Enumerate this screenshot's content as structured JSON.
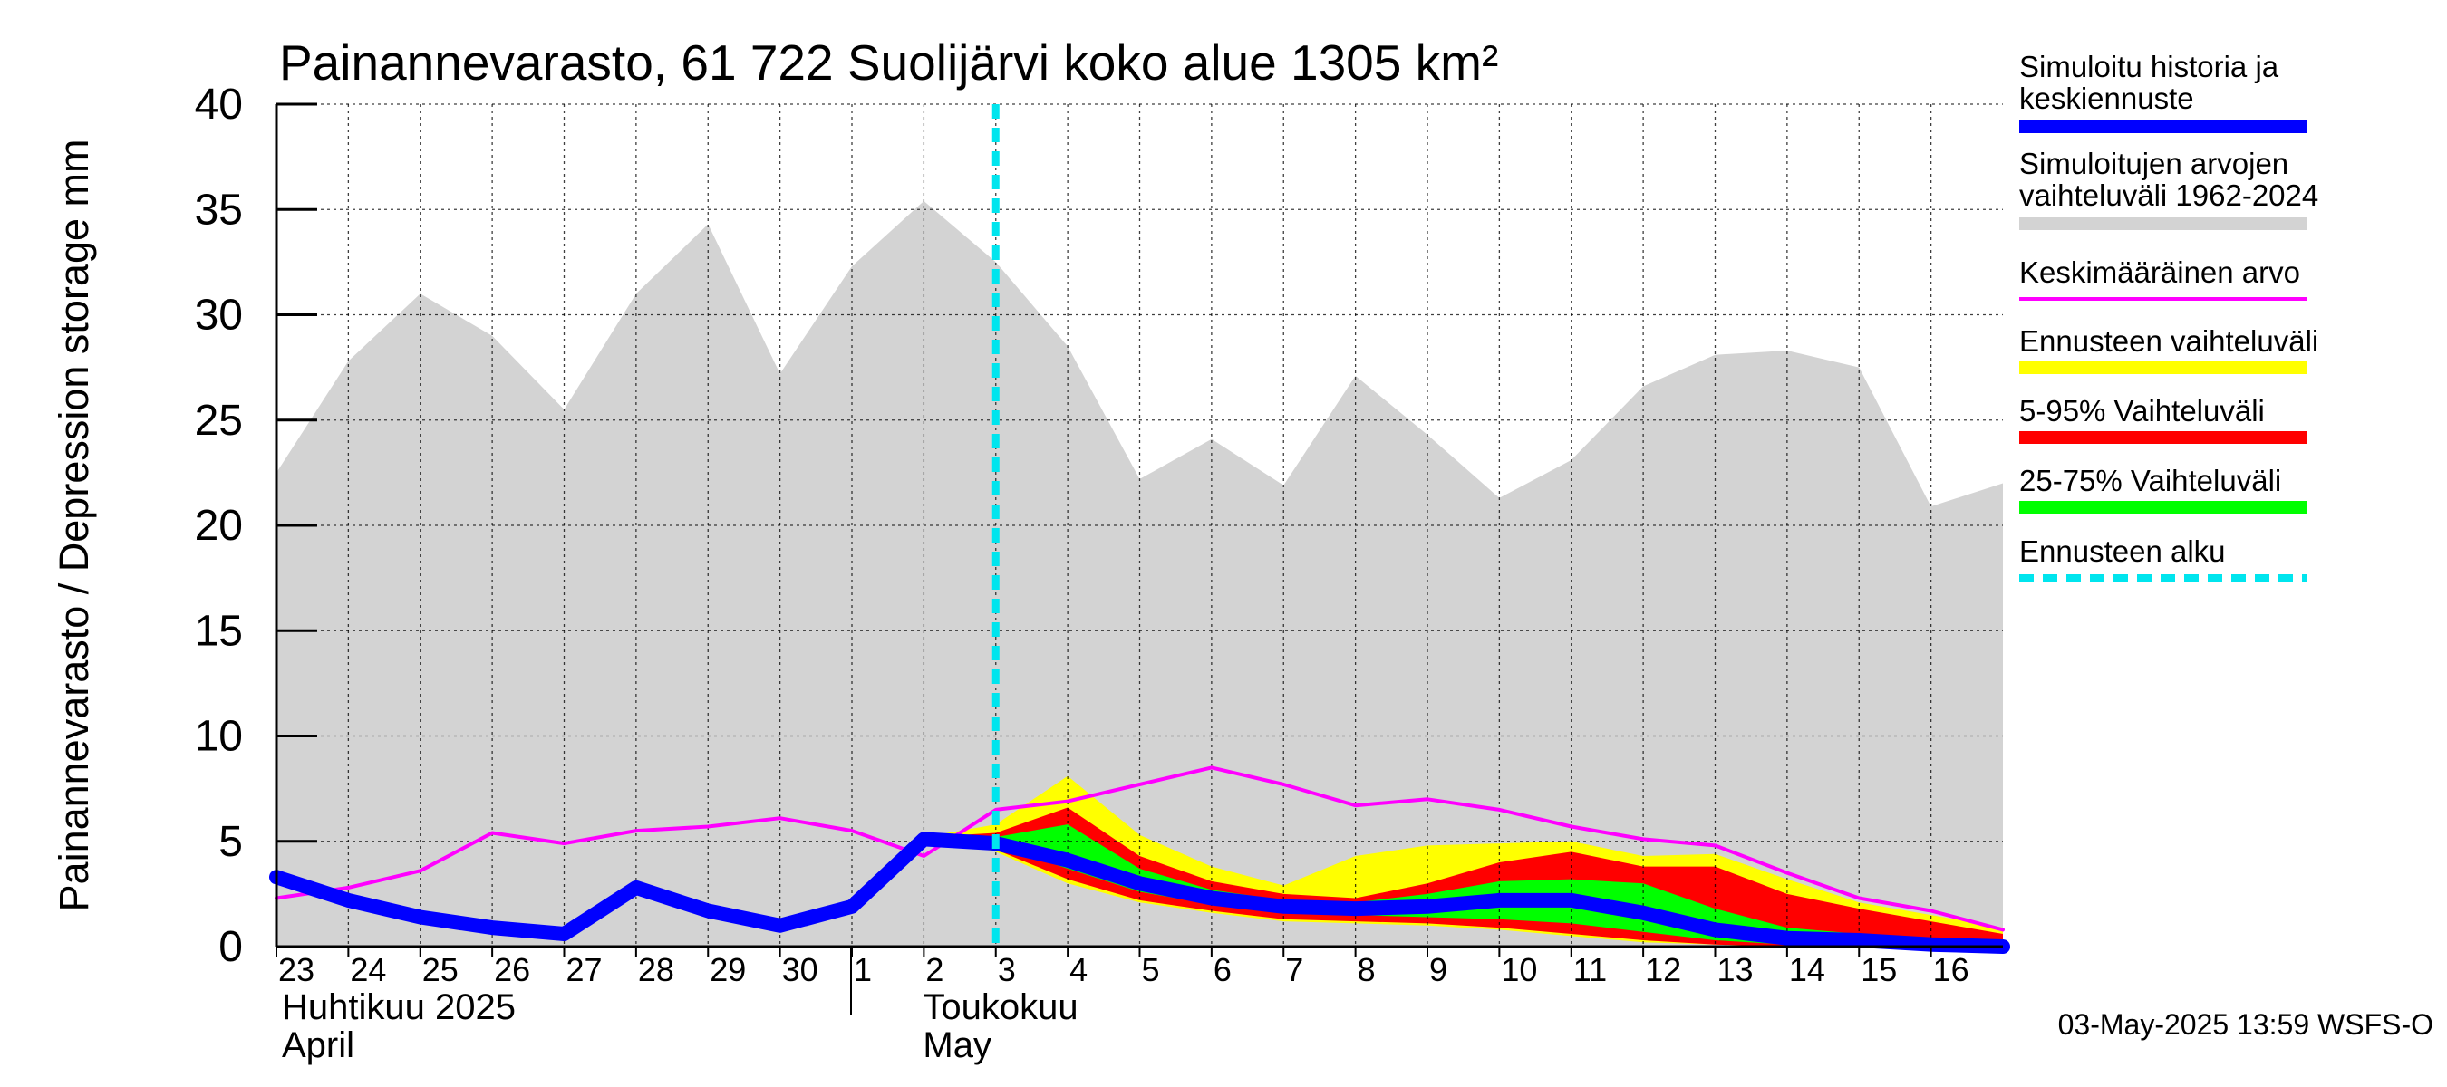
{
  "chart_data": {
    "type": "area",
    "title": "Painannevarasto, 61 722 Suolijärvi koko alue 1305 km²",
    "ylabel": "Painannevarasto / Depression storage    mm",
    "ylim": [
      0,
      40
    ],
    "yticks": [
      0,
      5,
      10,
      15,
      20,
      25,
      30,
      35,
      40
    ],
    "grid": true,
    "x_start": "2025-04-23",
    "x_end": "2025-05-17",
    "xtick_labels": [
      "23",
      "24",
      "25",
      "26",
      "27",
      "28",
      "29",
      "30",
      "1",
      "2",
      "3",
      "4",
      "5",
      "6",
      "7",
      "8",
      "9",
      "10",
      "11",
      "12",
      "13",
      "14",
      "15",
      "16"
    ],
    "months": [
      {
        "label": "Huhtikuu  2025",
        "label2": "April"
      },
      {
        "label": "Toukokuu",
        "label2": "May"
      }
    ],
    "legend_position": "right",
    "footer": "03-May-2025 13:59 WSFS-O",
    "series": [
      {
        "name": "Simuloitujen arvojen vaihteluväli 1962-2024",
        "kind": "band",
        "color": "#d3d3d3",
        "x": [
          "2025-04-23",
          "2025-04-24",
          "2025-04-25",
          "2025-04-26",
          "2025-04-27",
          "2025-04-28",
          "2025-04-29",
          "2025-04-30",
          "2025-05-01",
          "2025-05-02",
          "2025-05-03",
          "2025-05-04",
          "2025-05-05",
          "2025-05-06",
          "2025-05-07",
          "2025-05-08",
          "2025-05-09",
          "2025-05-10",
          "2025-05-11",
          "2025-05-12",
          "2025-05-13",
          "2025-05-14",
          "2025-05-15",
          "2025-05-16",
          "2025-05-17"
        ],
        "upper": [
          22.5,
          27.8,
          31.0,
          29.0,
          25.5,
          31.0,
          34.3,
          27.2,
          32.3,
          35.4,
          32.5,
          28.5,
          22.2,
          24.1,
          21.9,
          27.1,
          24.3,
          21.3,
          23.1,
          26.6,
          28.1,
          28.3,
          27.5,
          20.9,
          22.0
        ],
        "lower": [
          0,
          0,
          0,
          0,
          0,
          0,
          0,
          0,
          0,
          0,
          0,
          0,
          0,
          0,
          0,
          0,
          0,
          0,
          0,
          0,
          0,
          0,
          0,
          0,
          0
        ]
      },
      {
        "name": "Ennusteen vaihteluväli",
        "kind": "band",
        "color": "#ffff00",
        "x": [
          "2025-05-02",
          "2025-05-03",
          "2025-05-04",
          "2025-05-05",
          "2025-05-06",
          "2025-05-07",
          "2025-05-08",
          "2025-05-09",
          "2025-05-10",
          "2025-05-11",
          "2025-05-12",
          "2025-05-13",
          "2025-05-14",
          "2025-05-15",
          "2025-05-16",
          "2025-05-17"
        ],
        "upper": [
          5.2,
          5.8,
          8.1,
          5.3,
          3.8,
          2.9,
          4.3,
          4.8,
          4.9,
          5.0,
          4.3,
          4.4,
          3.2,
          2.1,
          1.5,
          0.9
        ],
        "lower": [
          5.2,
          4.5,
          3.0,
          2.1,
          1.6,
          1.2,
          1.1,
          1.0,
          0.8,
          0.5,
          0.2,
          0.1,
          0.0,
          0.0,
          0.0,
          0.0
        ]
      },
      {
        "name": "5-95% Vaihteluväli",
        "kind": "band",
        "color": "#ff0000",
        "x": [
          "2025-05-02",
          "2025-05-03",
          "2025-05-04",
          "2025-05-05",
          "2025-05-06",
          "2025-05-07",
          "2025-05-08",
          "2025-05-09",
          "2025-05-10",
          "2025-05-11",
          "2025-05-12",
          "2025-05-13",
          "2025-05-14",
          "2025-05-15",
          "2025-05-16",
          "2025-05-17"
        ],
        "upper": [
          5.2,
          5.4,
          6.6,
          4.3,
          3.1,
          2.5,
          2.3,
          3.0,
          4.0,
          4.5,
          3.8,
          3.8,
          2.5,
          1.8,
          1.2,
          0.6
        ],
        "lower": [
          5.2,
          4.6,
          3.2,
          2.2,
          1.7,
          1.3,
          1.2,
          1.1,
          0.9,
          0.6,
          0.3,
          0.1,
          0.0,
          0.0,
          0.0,
          0.0
        ]
      },
      {
        "name": "25-75% Vaihteluväli",
        "kind": "band",
        "color": "#00ff00",
        "x": [
          "2025-05-02",
          "2025-05-03",
          "2025-05-04",
          "2025-05-05",
          "2025-05-06",
          "2025-05-07",
          "2025-05-08",
          "2025-05-09",
          "2025-05-10",
          "2025-05-11",
          "2025-05-12",
          "2025-05-13",
          "2025-05-14",
          "2025-05-15",
          "2025-05-16",
          "2025-05-17"
        ],
        "upper": [
          5.2,
          5.2,
          5.8,
          3.7,
          2.7,
          2.2,
          2.1,
          2.5,
          3.1,
          3.2,
          3.0,
          1.8,
          0.9,
          0.6,
          0.3,
          0.1
        ],
        "lower": [
          5.2,
          4.8,
          3.7,
          2.6,
          2.0,
          1.6,
          1.5,
          1.4,
          1.3,
          1.1,
          0.7,
          0.3,
          0.1,
          0.0,
          0.0,
          0.0
        ]
      },
      {
        "name": "Keskimääräinen arvo",
        "kind": "line",
        "color": "#ff00ff",
        "x": [
          "2025-04-23",
          "2025-04-24",
          "2025-04-25",
          "2025-04-26",
          "2025-04-27",
          "2025-04-28",
          "2025-04-29",
          "2025-04-30",
          "2025-05-01",
          "2025-05-02",
          "2025-05-03",
          "2025-05-04",
          "2025-05-05",
          "2025-05-06",
          "2025-05-07",
          "2025-05-08",
          "2025-05-09",
          "2025-05-10",
          "2025-05-11",
          "2025-05-12",
          "2025-05-13",
          "2025-05-14",
          "2025-05-15",
          "2025-05-16",
          "2025-05-17"
        ],
        "values": [
          2.3,
          2.8,
          3.6,
          5.4,
          4.9,
          5.5,
          5.7,
          6.1,
          5.5,
          4.3,
          6.5,
          6.9,
          7.7,
          8.5,
          7.7,
          6.7,
          7.0,
          6.5,
          5.7,
          5.1,
          4.8,
          3.5,
          2.3,
          1.7,
          0.8
        ]
      },
      {
        "name": "Simuloitu historia ja keskiennuste",
        "kind": "line",
        "color": "#0000ff",
        "x": [
          "2025-04-23",
          "2025-04-24",
          "2025-04-25",
          "2025-04-26",
          "2025-04-27",
          "2025-04-28",
          "2025-04-29",
          "2025-04-30",
          "2025-05-01",
          "2025-05-02",
          "2025-05-03",
          "2025-05-04",
          "2025-05-05",
          "2025-05-06",
          "2025-05-07",
          "2025-05-08",
          "2025-05-09",
          "2025-05-10",
          "2025-05-11",
          "2025-05-12",
          "2025-05-13",
          "2025-05-14",
          "2025-05-15",
          "2025-05-16",
          "2025-05-17"
        ],
        "values": [
          3.3,
          2.2,
          1.4,
          0.9,
          0.6,
          2.8,
          1.7,
          1.0,
          1.9,
          5.1,
          4.9,
          4.1,
          3.0,
          2.3,
          1.9,
          1.8,
          1.9,
          2.2,
          2.2,
          1.6,
          0.8,
          0.4,
          0.3,
          0.1,
          0.0
        ]
      },
      {
        "name": "Ennusteen alku",
        "kind": "vline",
        "color": "#00e5ee",
        "x": [
          "2025-05-03"
        ]
      }
    ]
  },
  "legend": [
    {
      "text1": "Simuloitu historia ja",
      "text2": "keskiennuste",
      "color": "#0000ff",
      "style": "thick"
    },
    {
      "text1": "Simuloitujen arvojen",
      "text2": "vaihteluväli 1962-2024",
      "color": "#d3d3d3",
      "style": "medium"
    },
    {
      "text1": "Keskimääräinen arvo",
      "text2": "",
      "color": "#ff00ff",
      "style": "thin"
    },
    {
      "text1": "Ennusteen vaihteluväli",
      "text2": "",
      "color": "#ffff00",
      "style": "medium"
    },
    {
      "text1": "5-95% Vaihteluväli",
      "text2": "",
      "color": "#ff0000",
      "style": "medium"
    },
    {
      "text1": "25-75% Vaihteluväli",
      "text2": "",
      "color": "#00ff00",
      "style": "medium"
    },
    {
      "text1": "Ennusteen alku",
      "text2": "",
      "color": "#00e5ee",
      "style": "dashed"
    }
  ]
}
